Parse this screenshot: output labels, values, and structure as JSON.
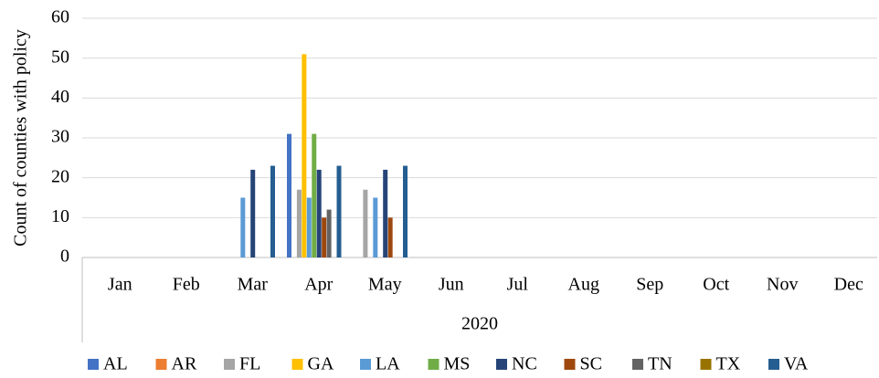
{
  "chart_data": {
    "type": "bar",
    "y_label": "Count of counties with policy",
    "x_group_label": "2020",
    "categories": [
      "Jan",
      "Feb",
      "Mar",
      "Apr",
      "May",
      "Jun",
      "Jul",
      "Aug",
      "Sep",
      "Oct",
      "Nov",
      "Dec"
    ],
    "series": [
      {
        "name": "AL",
        "color": "#4472c4",
        "values": [
          null,
          null,
          null,
          31,
          null,
          null,
          null,
          null,
          null,
          null,
          null,
          null
        ]
      },
      {
        "name": "AR",
        "color": "#ed7d31",
        "values": [
          null,
          null,
          null,
          null,
          null,
          null,
          null,
          null,
          null,
          null,
          null,
          null
        ]
      },
      {
        "name": "FL",
        "color": "#a5a5a5",
        "values": [
          null,
          null,
          null,
          17,
          17,
          null,
          null,
          null,
          null,
          null,
          null,
          null
        ]
      },
      {
        "name": "GA",
        "color": "#ffc000",
        "values": [
          null,
          null,
          null,
          51,
          null,
          null,
          null,
          null,
          null,
          null,
          null,
          null
        ]
      },
      {
        "name": "LA",
        "color": "#5b9bd5",
        "values": [
          null,
          null,
          15,
          15,
          15,
          null,
          null,
          null,
          null,
          null,
          null,
          null
        ]
      },
      {
        "name": "MS",
        "color": "#70ad47",
        "values": [
          null,
          null,
          null,
          31,
          null,
          null,
          null,
          null,
          null,
          null,
          null,
          null
        ]
      },
      {
        "name": "NC",
        "color": "#264478",
        "values": [
          null,
          null,
          22,
          22,
          22,
          null,
          null,
          null,
          null,
          null,
          null,
          null
        ]
      },
      {
        "name": "SC",
        "color": "#9e480e",
        "values": [
          null,
          null,
          null,
          10,
          10,
          null,
          null,
          null,
          null,
          null,
          null,
          null
        ]
      },
      {
        "name": "TN",
        "color": "#636363",
        "values": [
          null,
          null,
          null,
          12,
          null,
          null,
          null,
          null,
          null,
          null,
          null,
          null
        ]
      },
      {
        "name": "TX",
        "color": "#997300",
        "values": [
          null,
          null,
          null,
          null,
          null,
          null,
          null,
          null,
          null,
          null,
          null,
          null
        ]
      },
      {
        "name": "VA",
        "color": "#255e91",
        "values": [
          null,
          null,
          23,
          23,
          23,
          null,
          null,
          null,
          null,
          null,
          null,
          null
        ]
      }
    ],
    "ylim": [
      0,
      60
    ],
    "yticks": [
      0,
      10,
      20,
      30,
      40,
      50,
      60
    ],
    "grid": true,
    "legend": "bottom"
  }
}
